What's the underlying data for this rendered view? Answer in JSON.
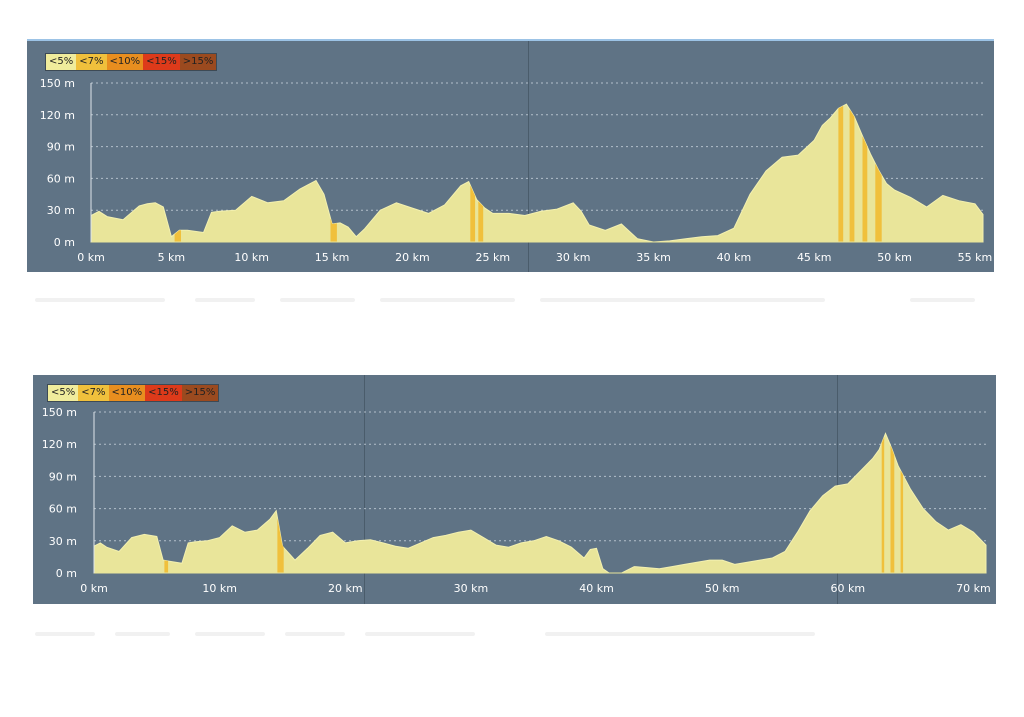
{
  "legend": [
    {
      "label": "<5%",
      "color": "#f0ec9c"
    },
    {
      "label": "<7%",
      "color": "#f0c03c"
    },
    {
      "label": "<10%",
      "color": "#e88e1f"
    },
    {
      "label": "<15%",
      "color": "#dd3a1a"
    },
    {
      "label": ">15%",
      "color": "#9b4a1f"
    }
  ],
  "colors": {
    "background": "#5f7385",
    "fill": "#e9e59a",
    "grade_7": "#f0c03c",
    "grid": "#c8d2dc"
  },
  "chart_data": [
    {
      "type": "area",
      "title": "",
      "y_ticks": [
        "0 m",
        "30 m",
        "60 m",
        "90 m",
        "120 m",
        "150 m"
      ],
      "x_ticks": [
        "0 km",
        "5 km",
        "10 km",
        "15 km",
        "20 km",
        "25 km",
        "30 km",
        "35 km",
        "40 km",
        "45 km",
        "50 km",
        "55 km"
      ],
      "ylim": [
        0,
        150
      ],
      "xlim": [
        0,
        55.5
      ],
      "x_unit": "km",
      "y_unit": "m",
      "grid": true,
      "series": [
        {
          "x": [
            0,
            0.5,
            1,
            2,
            3,
            3.5,
            4,
            4.5,
            5,
            5.5,
            6,
            7,
            7.5,
            8,
            9,
            10,
            11,
            12,
            13,
            14,
            14.5,
            15,
            15.5,
            16,
            16.5,
            17,
            18,
            19,
            20,
            21,
            22,
            23,
            23.5,
            24,
            24.5,
            25,
            26,
            27,
            28,
            29,
            30,
            30.5,
            31,
            32,
            33,
            34,
            35,
            36,
            37,
            38,
            39,
            40,
            41,
            42,
            43,
            44,
            45,
            45.5,
            46,
            46.5,
            47,
            47.5,
            48,
            48.5,
            49,
            49.5,
            50,
            51,
            52,
            53,
            54,
            55,
            55.5
          ],
          "y": [
            25,
            29,
            24,
            21,
            34,
            36,
            37,
            33,
            5,
            11,
            11,
            9,
            28,
            29,
            30,
            43,
            37,
            39,
            50,
            58,
            45,
            17,
            18,
            14,
            5,
            12,
            30,
            37,
            32,
            27,
            35,
            53,
            57,
            40,
            32,
            27,
            27,
            25,
            29,
            31,
            37,
            29,
            16,
            11,
            17,
            3,
            0,
            1,
            3,
            5,
            6,
            13,
            45,
            67,
            80,
            82,
            96,
            110,
            117,
            126,
            130,
            118,
            100,
            83,
            68,
            55,
            49,
            42,
            33,
            44,
            39,
            36,
            26
          ]
        }
      ],
      "steep_segments": [
        [
          5.2,
          5.6
        ],
        [
          14.9,
          15.3
        ],
        [
          23.6,
          23.9
        ],
        [
          24.1,
          24.4
        ],
        [
          46.5,
          46.8
        ],
        [
          47.2,
          47.5
        ],
        [
          48.0,
          48.3
        ],
        [
          48.8,
          49.2
        ]
      ]
    },
    {
      "type": "area",
      "title": "",
      "y_ticks": [
        "0 m",
        "30 m",
        "60 m",
        "90 m",
        "120 m",
        "150 m"
      ],
      "x_ticks": [
        "0 km",
        "10 km",
        "20 km",
        "30 km",
        "40 km",
        "50 km",
        "60 km",
        "70 km"
      ],
      "ylim": [
        0,
        150
      ],
      "xlim": [
        0,
        71
      ],
      "x_unit": "km",
      "y_unit": "m",
      "grid": true,
      "series": [
        {
          "x": [
            0,
            0.5,
            1,
            2,
            3,
            4,
            5,
            5.5,
            6,
            7,
            7.5,
            8,
            9,
            10,
            11,
            12,
            13,
            14,
            14.5,
            15,
            16,
            17,
            18,
            19,
            20,
            21,
            22,
            23,
            24,
            25,
            26,
            27,
            28,
            29,
            30,
            31,
            32,
            33,
            34,
            35,
            36,
            37,
            38,
            39,
            39.5,
            40,
            40.5,
            41,
            42,
            43,
            44,
            45,
            46,
            47,
            48,
            49,
            50,
            51,
            52,
            53,
            54,
            55,
            56,
            57,
            58,
            59,
            60,
            61,
            62,
            62.5,
            63,
            63.5,
            64,
            65,
            66,
            67,
            68,
            69,
            70,
            71
          ],
          "y": [
            25,
            28,
            24,
            20,
            33,
            36,
            34,
            12,
            11,
            9,
            28,
            29,
            30,
            33,
            44,
            38,
            40,
            50,
            58,
            25,
            12,
            23,
            35,
            38,
            28,
            30,
            31,
            28,
            25,
            23,
            28,
            33,
            35,
            38,
            40,
            33,
            26,
            24,
            28,
            30,
            34,
            30,
            24,
            14,
            22,
            23,
            4,
            0,
            0,
            6,
            5,
            4,
            6,
            8,
            10,
            12,
            12,
            8,
            10,
            12,
            14,
            20,
            38,
            58,
            72,
            81,
            83,
            95,
            107,
            115,
            130,
            116,
            100,
            78,
            60,
            48,
            40,
            45,
            38,
            26
          ]
        }
      ],
      "steep_segments": [
        [
          5.6,
          5.9
        ],
        [
          14.6,
          15.1
        ],
        [
          62.7,
          62.9
        ],
        [
          63.4,
          63.7
        ],
        [
          64.2,
          64.4
        ]
      ]
    }
  ]
}
